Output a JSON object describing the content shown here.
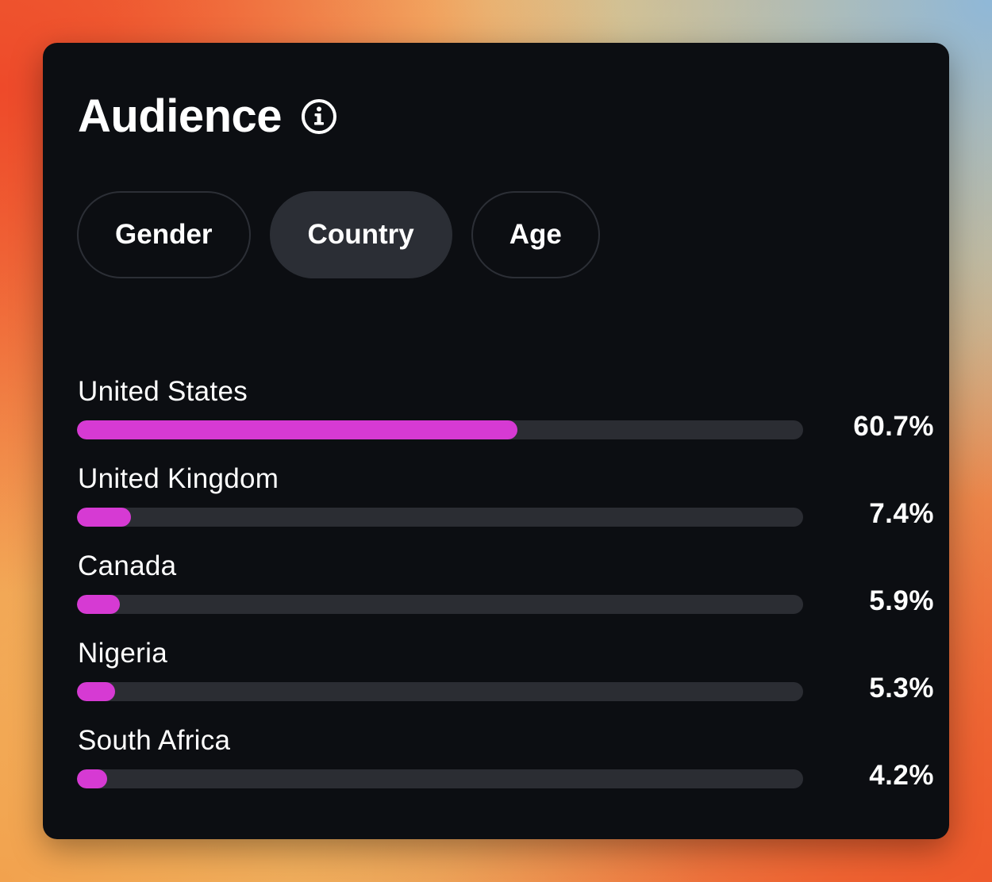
{
  "audience": {
    "title": "Audience",
    "info_icon": "info-circle-icon",
    "tabs": [
      {
        "label": "Gender",
        "active": false
      },
      {
        "label": "Country",
        "active": true
      },
      {
        "label": "Age",
        "active": false
      }
    ],
    "countries": [
      {
        "name": "United States",
        "percent_label": "60.7%",
        "value": 60.7
      },
      {
        "name": "United Kingdom",
        "percent_label": "7.4%",
        "value": 7.4
      },
      {
        "name": "Canada",
        "percent_label": "5.9%",
        "value": 5.9
      },
      {
        "name": "Nigeria",
        "percent_label": "5.3%",
        "value": 5.3
      },
      {
        "name": "South Africa",
        "percent_label": "4.2%",
        "value": 4.2
      }
    ],
    "colors": {
      "bar_fill": "#d63ad3",
      "bar_track": "#2b2d33",
      "card_background": "#0c0e12",
      "active_tab": "#2b2e35"
    }
  }
}
